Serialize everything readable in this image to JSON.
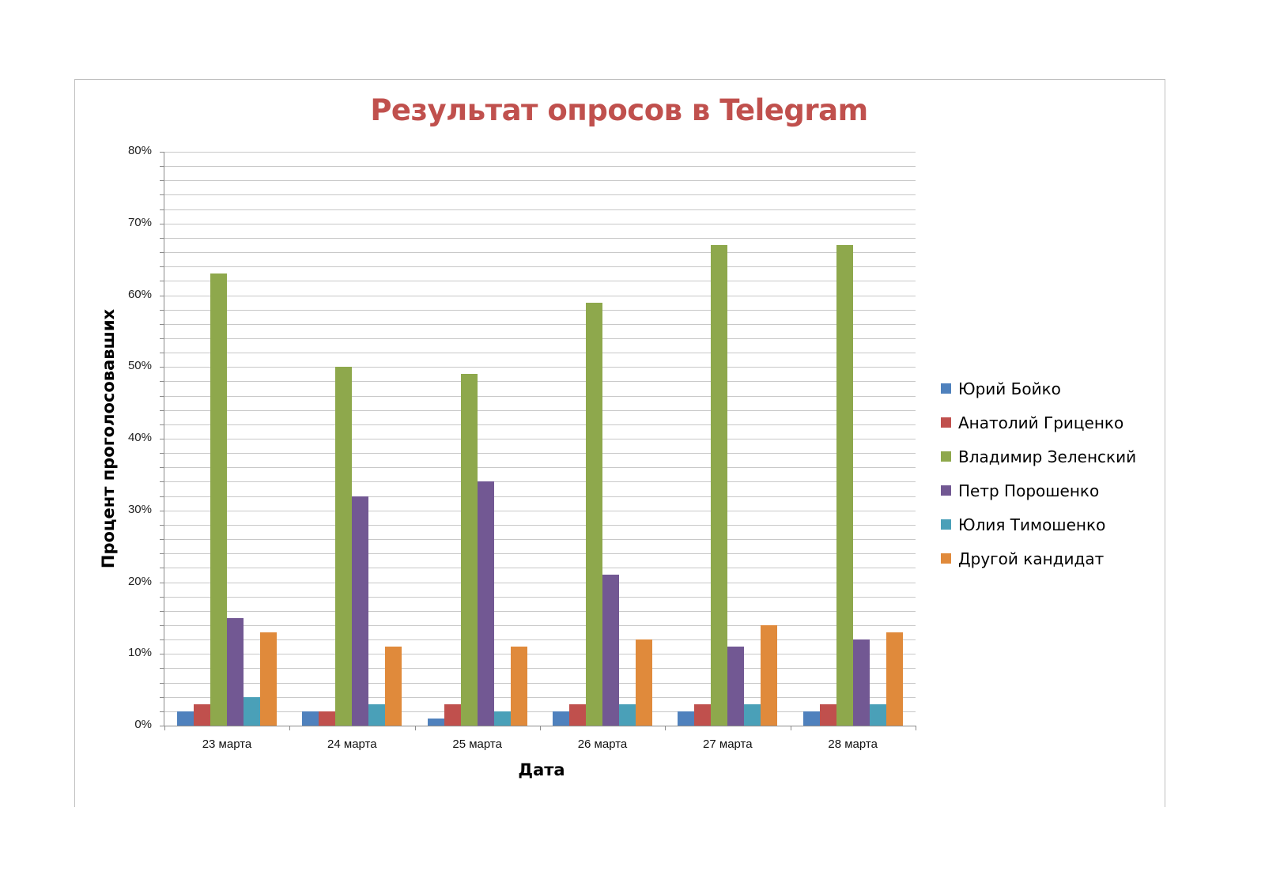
{
  "chart_data": {
    "type": "bar",
    "title": "Результат опросов в Telegram",
    "xlabel": "Дата",
    "ylabel": "Процент проголосовавших",
    "ylim": [
      0,
      80
    ],
    "y_ticks": [
      "0%",
      "10%",
      "20%",
      "30%",
      "40%",
      "50%",
      "60%",
      "70%",
      "80%"
    ],
    "minor_grid_step": 2,
    "grid": true,
    "legend_position": "right",
    "categories": [
      "23 марта",
      "24 марта",
      "25 марта",
      "26 марта",
      "27 марта",
      "28 марта"
    ],
    "series": [
      {
        "name": "Юрий Бойко",
        "color": "#4f81bd",
        "values": [
          2,
          2,
          1,
          2,
          2,
          2
        ]
      },
      {
        "name": "Анатолий Гриценко",
        "color": "#c0504d",
        "values": [
          3,
          2,
          3,
          3,
          3,
          3
        ]
      },
      {
        "name": "Владимир Зеленский",
        "color": "#8ea84c",
        "values": [
          63,
          50,
          49,
          59,
          67,
          67
        ]
      },
      {
        "name": "Петр Порошенко",
        "color": "#725893",
        "values": [
          15,
          32,
          34,
          21,
          11,
          12
        ]
      },
      {
        "name": "Юлия Тимошенко",
        "color": "#4aa0b8",
        "values": [
          4,
          3,
          2,
          3,
          3,
          3
        ]
      },
      {
        "name": "Другой кандидат",
        "color": "#e08a3b",
        "values": [
          13,
          11,
          11,
          12,
          14,
          13
        ]
      }
    ]
  }
}
